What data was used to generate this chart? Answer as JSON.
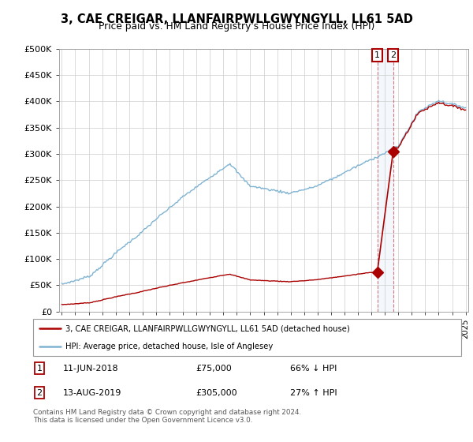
{
  "title": "3, CAE CREIGAR, LLANFAIRPWLLGWYNGYLL, LL61 5AD",
  "subtitle": "Price paid vs. HM Land Registry's House Price Index (HPI)",
  "legend_line1": "3, CAE CREIGAR, LLANFAIRPWLLGWYNGYLL, LL61 5AD (detached house)",
  "legend_line2": "HPI: Average price, detached house, Isle of Anglesey",
  "footer": "Contains HM Land Registry data © Crown copyright and database right 2024.\nThis data is licensed under the Open Government Licence v3.0.",
  "annotation1_date": "11-JUN-2018",
  "annotation1_price": "£75,000",
  "annotation1_pct": "66% ↓ HPI",
  "annotation2_date": "13-AUG-2019",
  "annotation2_price": "£305,000",
  "annotation2_pct": "27% ↑ HPI",
  "point1_x": 2018.44,
  "point1_y": 75000,
  "point2_x": 2019.62,
  "point2_y": 305000,
  "red_color": "#aa0000",
  "blue_color": "#7fb3d3",
  "ylim": [
    0,
    500000
  ],
  "xlim": [
    1994.8,
    2025.2
  ],
  "yticks": [
    0,
    50000,
    100000,
    150000,
    200000,
    250000,
    300000,
    350000,
    400000,
    450000,
    500000
  ],
  "ytick_labels": [
    "£0",
    "£50K",
    "£100K",
    "£150K",
    "£200K",
    "£250K",
    "£300K",
    "£350K",
    "£400K",
    "£450K",
    "£500K"
  ],
  "xticks": [
    1995,
    1996,
    1997,
    1998,
    1999,
    2000,
    2001,
    2002,
    2003,
    2004,
    2005,
    2006,
    2007,
    2008,
    2009,
    2010,
    2011,
    2012,
    2013,
    2014,
    2015,
    2016,
    2017,
    2018,
    2019,
    2020,
    2021,
    2022,
    2023,
    2024,
    2025
  ]
}
